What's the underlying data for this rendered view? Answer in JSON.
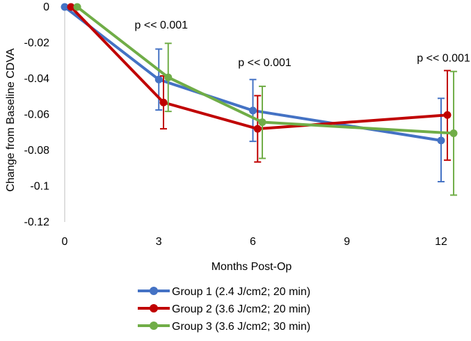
{
  "chart_data": {
    "type": "line",
    "title": "",
    "xlabel": "Months Post-Op",
    "ylabel": "Change from Baseline CDVA",
    "xlim": [
      0,
      12.5
    ],
    "ylim": [
      -0.12,
      0
    ],
    "x_ticks": [
      0,
      3,
      6,
      9,
      12
    ],
    "y_ticks": [
      0,
      -0.02,
      -0.04,
      -0.06,
      -0.08,
      -0.1,
      -0.12
    ],
    "x_tick_labels": [
      "0",
      "3",
      "6",
      "9",
      "12"
    ],
    "y_tick_labels": [
      "0",
      "-0.02",
      "-0.04",
      "-0.06",
      "-0.08",
      "-0.1",
      "-0.12"
    ],
    "grid": false,
    "legend_position": "bottom",
    "series": [
      {
        "name": "Group 1 (2.4 J/cm2; 20 min)",
        "color": "#4472C4",
        "x": [
          0,
          3,
          6,
          12
        ],
        "y": [
          0,
          -0.0405,
          -0.0578,
          -0.0745
        ],
        "err_low": [
          null,
          -0.0575,
          -0.075,
          -0.0975
        ],
        "err_high": [
          null,
          -0.0235,
          -0.0405,
          -0.051
        ]
      },
      {
        "name": "Group 2 (3.6 J/cm2; 20 min)",
        "color": "#C00000",
        "x": [
          0.2,
          3.15,
          6.15,
          12.2
        ],
        "y": [
          0,
          -0.0533,
          -0.068,
          -0.0603
        ],
        "err_low": [
          null,
          -0.068,
          -0.0865,
          -0.0855
        ],
        "err_high": [
          null,
          -0.0385,
          -0.0495,
          -0.0355
        ]
      },
      {
        "name": "Group 3 (3.6 J/cm2; 30 min)",
        "color": "#70AD47",
        "x": [
          0.4,
          3.3,
          6.3,
          12.4
        ],
        "y": [
          0,
          -0.0393,
          -0.0643,
          -0.0705
        ],
        "err_low": [
          null,
          -0.0583,
          -0.0845,
          -0.105
        ],
        "err_high": [
          null,
          -0.0203,
          -0.0443,
          -0.036
        ]
      }
    ],
    "annotations": [
      {
        "text": "p << 0.001",
        "x": 3.3,
        "y": -0.012
      },
      {
        "text": "p << 0.001",
        "x": 6.6,
        "y": -0.033
      },
      {
        "text": "p << 0.001",
        "x": 12.3,
        "y": -0.0305
      }
    ]
  }
}
